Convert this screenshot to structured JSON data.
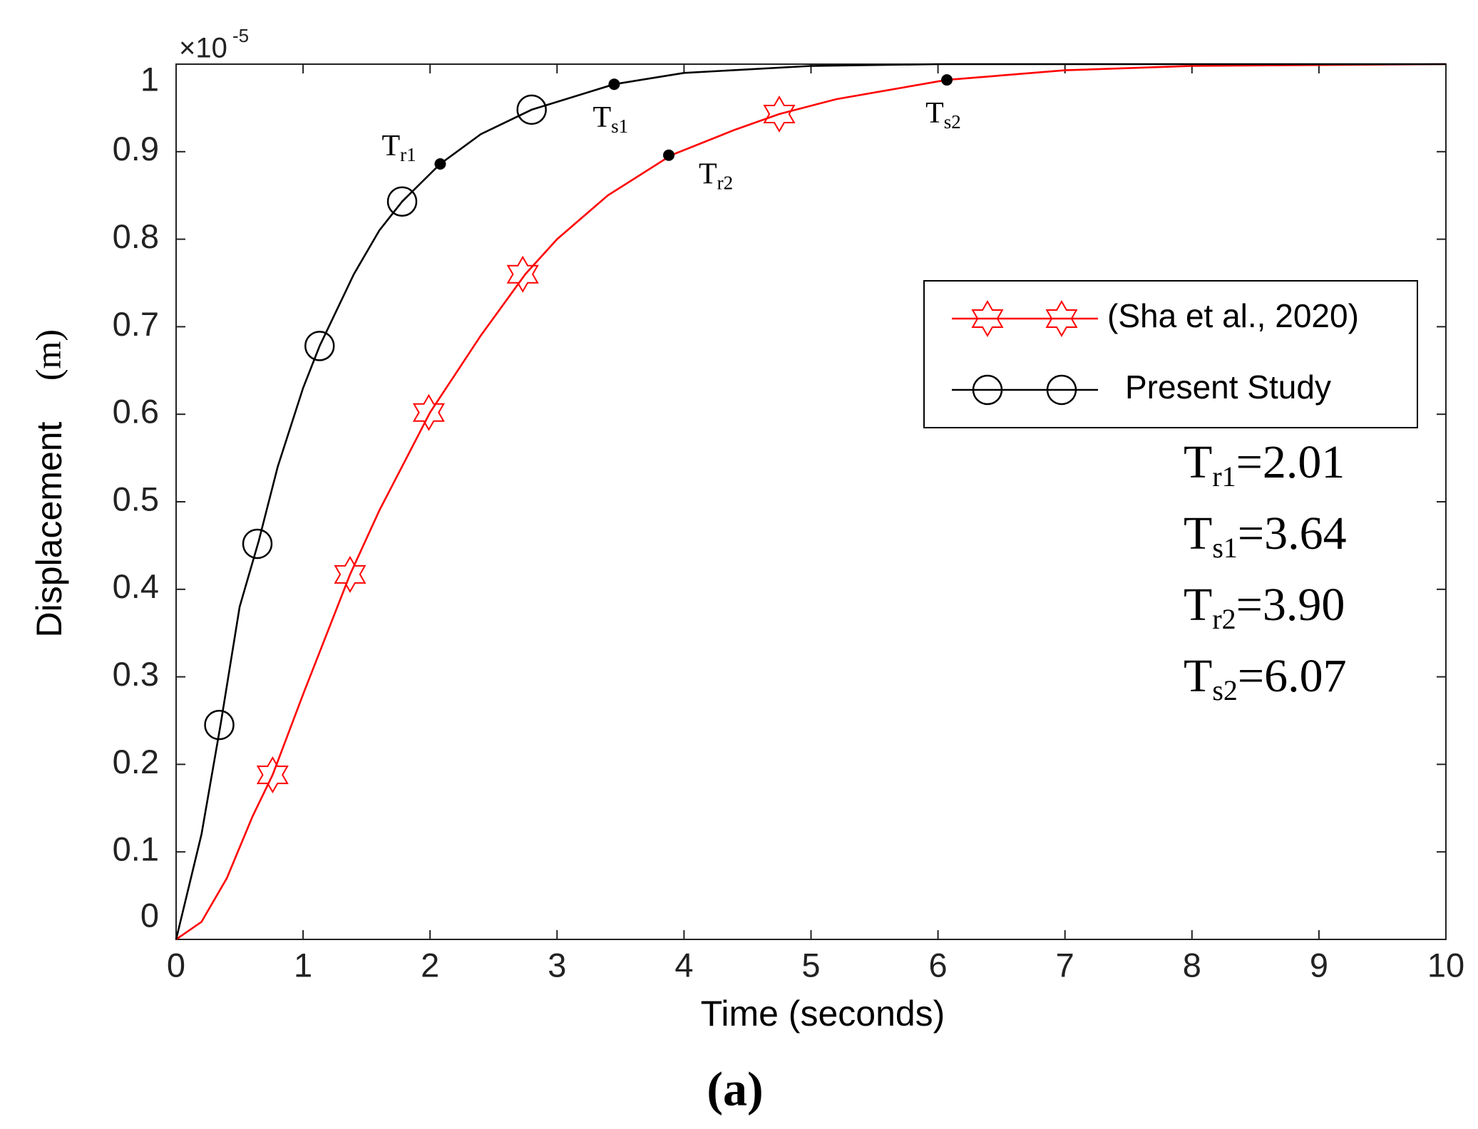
{
  "chart_data": {
    "type": "line",
    "xlabel": "Time (seconds)",
    "ylabel": "Displacement",
    "ylabel_unit": "(m)",
    "y_multiplier": "×10",
    "y_multiplier_exponent": "-5",
    "caption": "(a)",
    "xlim": [
      0,
      10
    ],
    "ylim": [
      0,
      1
    ],
    "xticks": [
      0,
      1,
      2,
      3,
      4,
      5,
      6,
      7,
      8,
      9,
      10
    ],
    "yticks": [
      0,
      0.1,
      0.2,
      0.3,
      0.4,
      0.5,
      0.6,
      0.7,
      0.8,
      0.9,
      1
    ],
    "legend_position": "right",
    "series": [
      {
        "name": "(Sha et al., 2020)",
        "color": "#ff0000",
        "marker": "hexagram",
        "x": [
          0,
          0.2,
          0.4,
          0.6,
          0.76,
          1,
          1.37,
          1.6,
          2,
          2.4,
          2.75,
          3,
          3.4,
          3.9,
          4.4,
          4.75,
          5.2,
          6.07,
          7,
          8,
          10
        ],
        "values": [
          0,
          0.02,
          0.07,
          0.14,
          0.188,
          0.28,
          0.417,
          0.49,
          0.602,
          0.69,
          0.76,
          0.8,
          0.85,
          0.896,
          0.925,
          0.943,
          0.96,
          0.982,
          0.993,
          0.998,
          1.0
        ],
        "markers": {
          "x": [
            0.76,
            1.37,
            1.99,
            2.73,
            4.75
          ],
          "values": [
            0.188,
            0.417,
            0.602,
            0.76,
            0.943
          ]
        }
      },
      {
        "name": "Present Study",
        "color": "#000000",
        "marker": "circle",
        "x": [
          0,
          0.2,
          0.35,
          0.5,
          0.65,
          0.8,
          1,
          1.13,
          1.4,
          1.6,
          1.78,
          2.08,
          2.4,
          2.8,
          3.45,
          4,
          5,
          6,
          8,
          10
        ],
        "values": [
          0,
          0.12,
          0.245,
          0.38,
          0.455,
          0.54,
          0.63,
          0.678,
          0.76,
          0.81,
          0.843,
          0.886,
          0.92,
          0.948,
          0.977,
          0.99,
          0.998,
          1.0,
          1.0,
          1.0
        ],
        "markers": {
          "x": [
            0.34,
            0.64,
            1.13,
            1.78,
            2.8
          ],
          "values": [
            0.245,
            0.452,
            0.678,
            0.843,
            0.948
          ]
        }
      }
    ],
    "annotations": [
      {
        "label": "T",
        "sub": "r1",
        "x": 2.08,
        "y": 0.886,
        "position": "upper-left"
      },
      {
        "label": "T",
        "sub": "s1",
        "x": 3.45,
        "y": 0.977,
        "position": "below"
      },
      {
        "label": "T",
        "sub": "r2",
        "x": 3.88,
        "y": 0.896,
        "position": "lower-right"
      },
      {
        "label": "T",
        "sub": "s2",
        "x": 6.07,
        "y": 0.982,
        "position": "below"
      }
    ],
    "results": [
      {
        "label": "T",
        "sub": "r1",
        "text": "=2.01"
      },
      {
        "label": "T",
        "sub": "s1",
        "text": "=3.64"
      },
      {
        "label": "T",
        "sub": "r2",
        "text": "=3.90"
      },
      {
        "label": "T",
        "sub": "s2",
        "text": "=6.07"
      }
    ]
  }
}
